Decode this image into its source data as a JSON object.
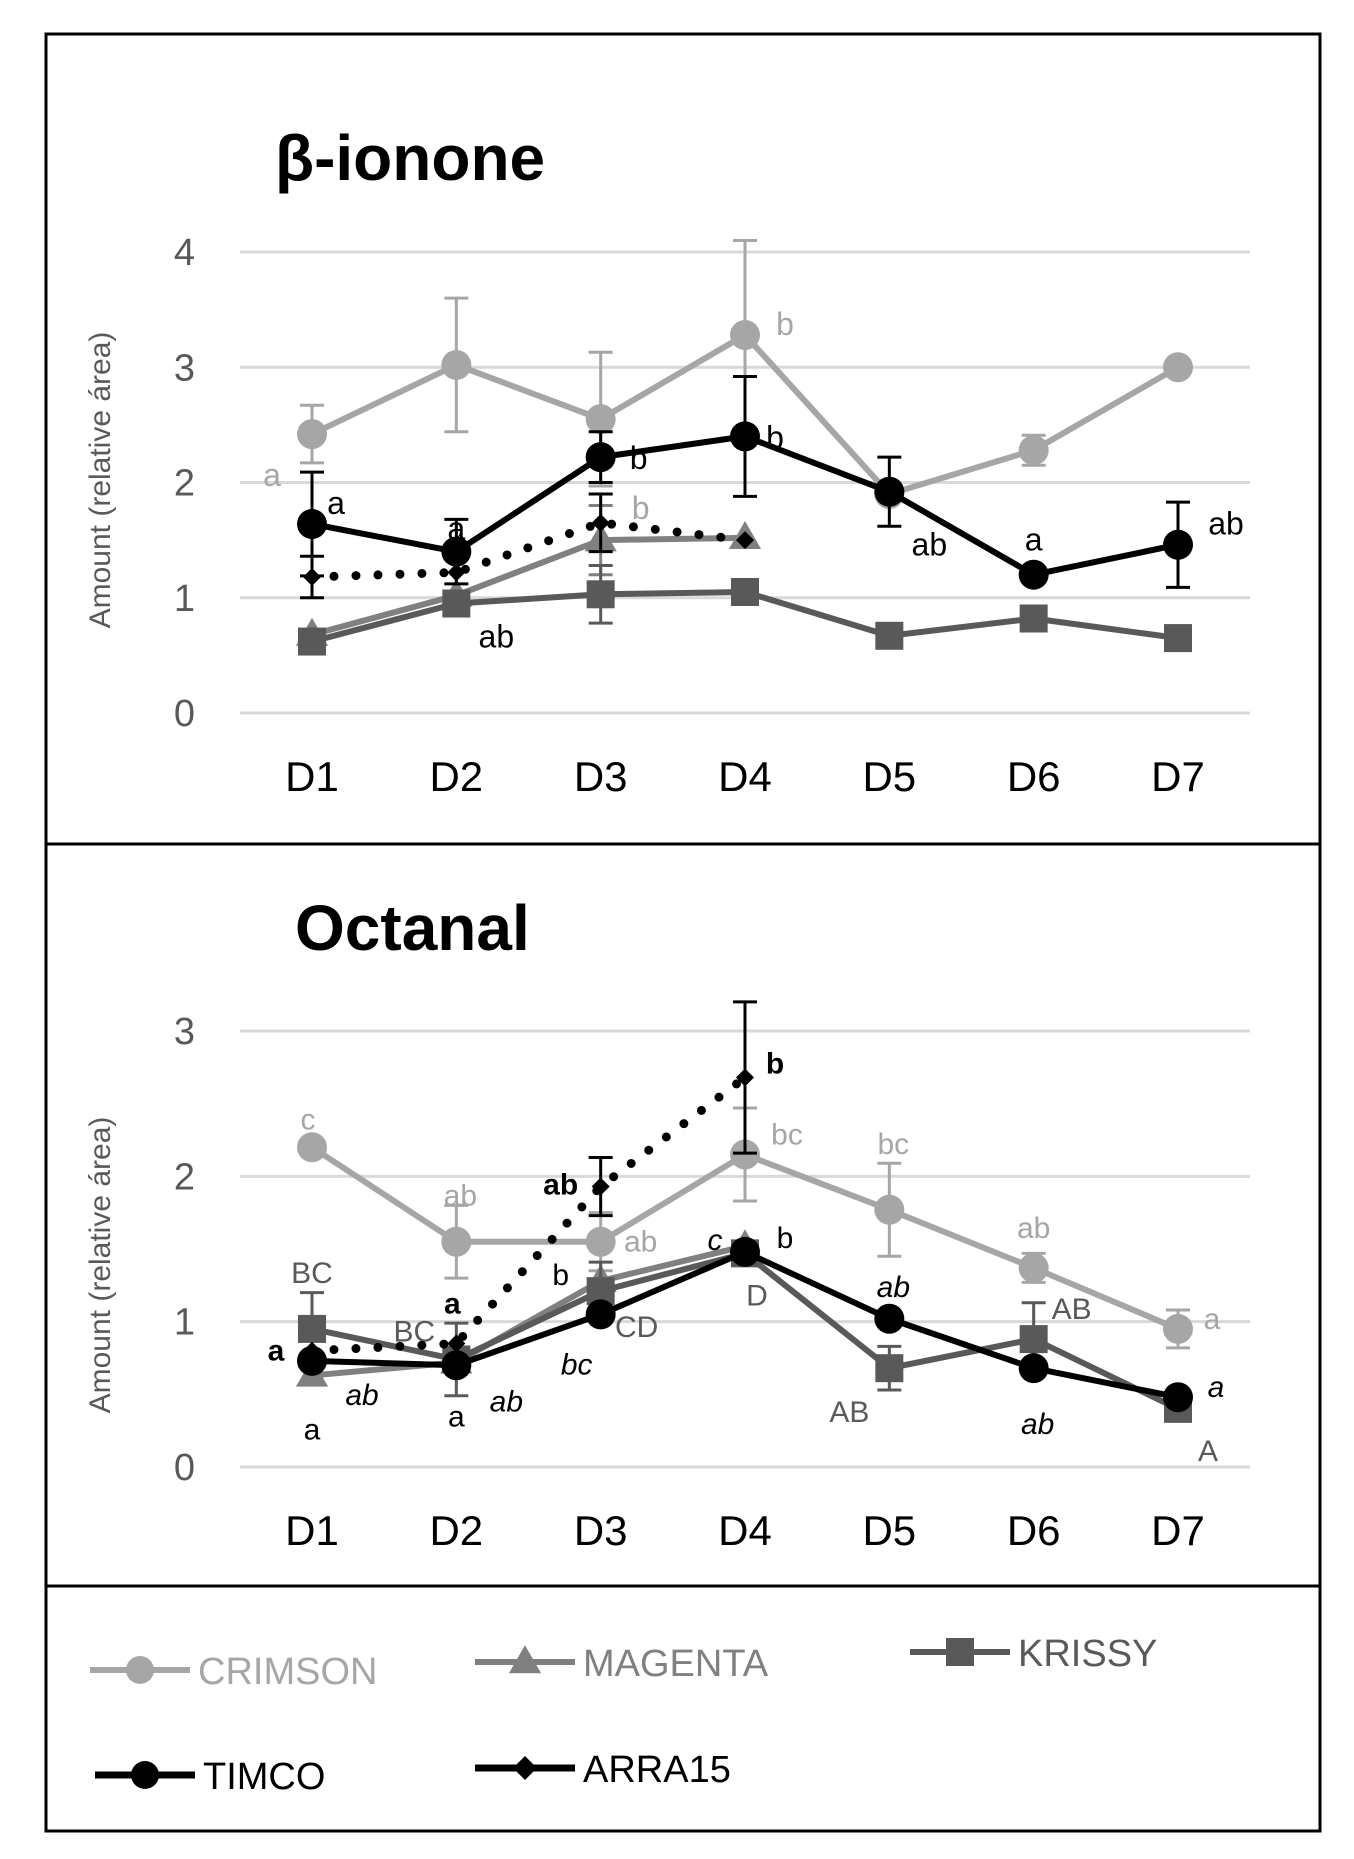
{
  "chart_data": [
    {
      "type": "line",
      "title": "β-ionone",
      "xlabel": "",
      "ylabel": "Amount (relative área)",
      "categories": [
        "D1",
        "D2",
        "D3",
        "D4",
        "D5",
        "D6",
        "D7"
      ],
      "ylim": [
        0,
        4
      ],
      "yticks": [
        "0",
        "1",
        "2",
        "3",
        "4"
      ],
      "grid": true,
      "series": [
        {
          "name": "CRIMSON",
          "color": "#a6a6a6",
          "marker": "circle",
          "dotted": false,
          "values": [
            2.42,
            3.02,
            2.55,
            3.28,
            1.9,
            2.28,
            3.0
          ],
          "errors": [
            0.25,
            0.58,
            0.58,
            0.82,
            0.0,
            0.13,
            0.0
          ],
          "labels": [
            "a",
            "",
            "b",
            "b",
            "",
            "",
            ""
          ]
        },
        {
          "name": "MAGENTA",
          "color": "#808080",
          "marker": "triangle",
          "dotted": false,
          "values": [
            0.68,
            1.02,
            1.5,
            1.52,
            null,
            null,
            null
          ],
          "errors": [
            0.0,
            0.0,
            0.3,
            0.0,
            null,
            null,
            null
          ],
          "labels": [
            "",
            "ab",
            "",
            "",
            "",
            "",
            ""
          ]
        },
        {
          "name": "KRISSY",
          "color": "#595959",
          "marker": "square",
          "dotted": false,
          "values": [
            0.62,
            0.95,
            1.03,
            1.05,
            0.67,
            0.82,
            0.65
          ],
          "errors": [
            0.0,
            0.0,
            0.25,
            0.0,
            0.0,
            0.0,
            0.0
          ],
          "labels": [
            "",
            "",
            "",
            "",
            "",
            "",
            ""
          ]
        },
        {
          "name": "TIMCO",
          "color": "#000000",
          "marker": "circle",
          "dotted": false,
          "values": [
            1.64,
            1.4,
            2.22,
            2.4,
            1.92,
            1.2,
            1.46
          ],
          "errors": [
            0.45,
            0.28,
            0.22,
            0.52,
            0.3,
            0.0,
            0.37
          ],
          "labels": [
            "a",
            "a",
            "b",
            "b",
            "ab",
            "a",
            "ab"
          ]
        },
        {
          "name": "ARRA15",
          "color": "#000000",
          "marker": "diamond",
          "dotted": true,
          "values": [
            1.18,
            1.22,
            1.65,
            1.5,
            null,
            null,
            null
          ],
          "errors": [
            0.18,
            0.0,
            0.25,
            0.0,
            null,
            null,
            null
          ],
          "labels": [
            "",
            "",
            "",
            "",
            "",
            "",
            ""
          ]
        }
      ]
    },
    {
      "type": "line",
      "title": "Octanal",
      "xlabel": "",
      "ylabel": "Amount (relative área)",
      "categories": [
        "D1",
        "D2",
        "D3",
        "D4",
        "D5",
        "D6",
        "D7"
      ],
      "ylim": [
        0,
        3
      ],
      "yticks": [
        "0",
        "1",
        "2",
        "3"
      ],
      "grid": true,
      "series": [
        {
          "name": "CRIMSON",
          "color": "#a6a6a6",
          "marker": "circle",
          "dotted": false,
          "values": [
            2.2,
            1.55,
            1.55,
            2.15,
            1.77,
            1.37,
            0.95
          ],
          "errors": [
            0.05,
            0.25,
            0.2,
            0.32,
            0.32,
            0.1,
            0.13
          ],
          "labels": [
            "c",
            "ab",
            "ab",
            "bc",
            "bc",
            "ab",
            "a"
          ]
        },
        {
          "name": "MAGENTA",
          "color": "#808080",
          "marker": "triangle",
          "dotted": false,
          "values": [
            0.63,
            0.72,
            1.28,
            1.52,
            null,
            null,
            null
          ],
          "errors": [
            0.0,
            0.0,
            0.0,
            0.0,
            null,
            null,
            null
          ],
          "labels": [
            "a",
            "a",
            "b",
            "b",
            "",
            "",
            ""
          ]
        },
        {
          "name": "KRISSY",
          "color": "#595959",
          "marker": "square",
          "dotted": false,
          "values": [
            0.95,
            0.74,
            1.21,
            1.47,
            0.68,
            0.88,
            0.4
          ],
          "errors": [
            0.25,
            0.25,
            0.2,
            0.0,
            0.15,
            0.25,
            0.0
          ],
          "labels": [
            "BC",
            "BC",
            "CD",
            "D",
            "AB",
            "AB",
            "A"
          ]
        },
        {
          "name": "TIMCO",
          "color": "#000000",
          "marker": "circle",
          "dotted": false,
          "values": [
            0.73,
            0.7,
            1.05,
            1.48,
            1.02,
            0.68,
            0.48
          ],
          "errors": [
            0.0,
            0.0,
            0.0,
            0.0,
            0.0,
            0.0,
            0.0
          ],
          "labels": [
            "ab",
            "ab",
            "bc",
            "c",
            "ab",
            "ab",
            "a"
          ]
        },
        {
          "name": "ARRA15",
          "color": "#000000",
          "marker": "diamond",
          "dotted": true,
          "values": [
            0.8,
            0.85,
            1.93,
            2.68,
            null,
            null,
            null
          ],
          "errors": [
            0.0,
            0.0,
            0.2,
            0.52,
            null,
            null,
            null
          ],
          "labels": [
            "a",
            "a",
            "ab",
            "b",
            "",
            "",
            ""
          ]
        }
      ]
    }
  ],
  "legend": [
    {
      "name": "CRIMSON",
      "color": "#a6a6a6",
      "marker": "circle"
    },
    {
      "name": "MAGENTA",
      "color": "#808080",
      "marker": "triangle"
    },
    {
      "name": "KRISSY",
      "color": "#595959",
      "marker": "square"
    },
    {
      "name": "TIMCO",
      "color": "#000000",
      "marker": "circle"
    },
    {
      "name": "ARRA15",
      "color": "#000000",
      "marker": "diamond"
    }
  ]
}
